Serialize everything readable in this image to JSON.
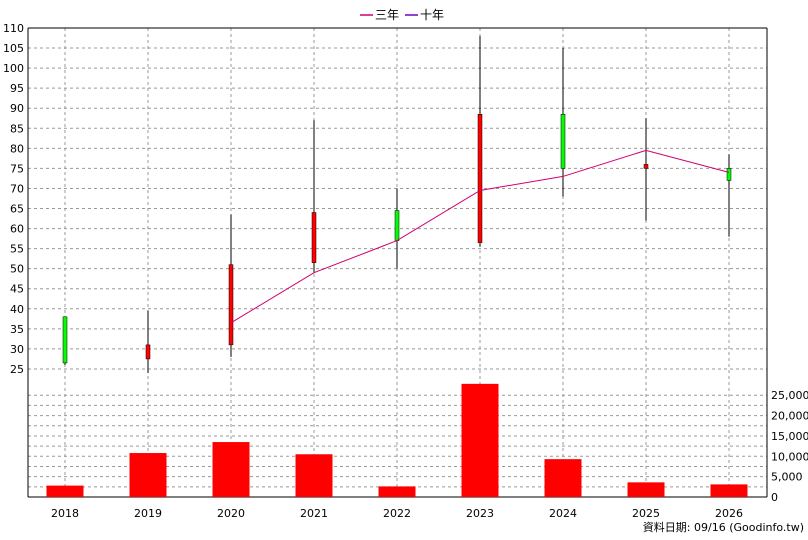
{
  "legend": {
    "series1": "三年",
    "series2": "十年"
  },
  "source_label": "資料日期: 09/16 (Goodinfo.tw)",
  "colors": {
    "up": "#00ff00",
    "down": "#ff0000",
    "line_3yr": "#d0006f",
    "line_10yr": "#7000c0",
    "volume": "#ff0000",
    "grid": "#999999",
    "axis": "#000000"
  },
  "chart_data": {
    "type": "candlestick+line+bar",
    "categories": [
      "2018",
      "2019",
      "2020",
      "2021",
      "2022",
      "2023",
      "2024",
      "2025",
      "2026"
    ],
    "price_axis": {
      "ylim": [
        22,
        110
      ],
      "ticks": [
        25,
        30,
        35,
        40,
        45,
        50,
        55,
        60,
        65,
        70,
        75,
        80,
        85,
        90,
        95,
        100,
        105,
        110
      ]
    },
    "volume_axis": {
      "ylim": [
        0,
        28500
      ],
      "ticks": [
        0,
        5000,
        10000,
        15000,
        20000,
        25000
      ],
      "tick_labels": [
        "0",
        "5,000",
        "10,000",
        "15,000",
        "20,000",
        "25,000"
      ]
    },
    "candles": [
      {
        "year": "2018",
        "open": 26.5,
        "high": 38,
        "low": 26,
        "close": 38
      },
      {
        "year": "2019",
        "open": 31,
        "high": 39.5,
        "low": 24,
        "close": 27.5
      },
      {
        "year": "2020",
        "open": 51,
        "high": 63.5,
        "low": 28,
        "close": 31
      },
      {
        "year": "2021",
        "open": 64,
        "high": 87,
        "low": 49,
        "close": 51.5
      },
      {
        "year": "2022",
        "open": 57,
        "high": 70,
        "low": 50,
        "close": 64.5
      },
      {
        "year": "2023",
        "open": 88.5,
        "high": 108,
        "low": 55.5,
        "close": 56.5
      },
      {
        "year": "2024",
        "open": 75,
        "high": 105,
        "low": 68,
        "close": 88.5
      },
      {
        "year": "2025",
        "open": 76,
        "high": 87.5,
        "low": 62,
        "close": 75
      },
      {
        "year": "2026",
        "open": 72,
        "high": 78.5,
        "low": 58,
        "close": 75
      }
    ],
    "series": [
      {
        "name": "三年",
        "values": [
          null,
          null,
          36.5,
          49,
          57,
          69.5,
          73,
          79.5,
          74
        ]
      },
      {
        "name": "十年",
        "values": [
          null,
          null,
          null,
          null,
          null,
          null,
          null,
          null,
          null
        ]
      }
    ],
    "volume": [
      2800,
      10800,
      13500,
      10500,
      2600,
      27800,
      9300,
      3600,
      3100
    ]
  }
}
